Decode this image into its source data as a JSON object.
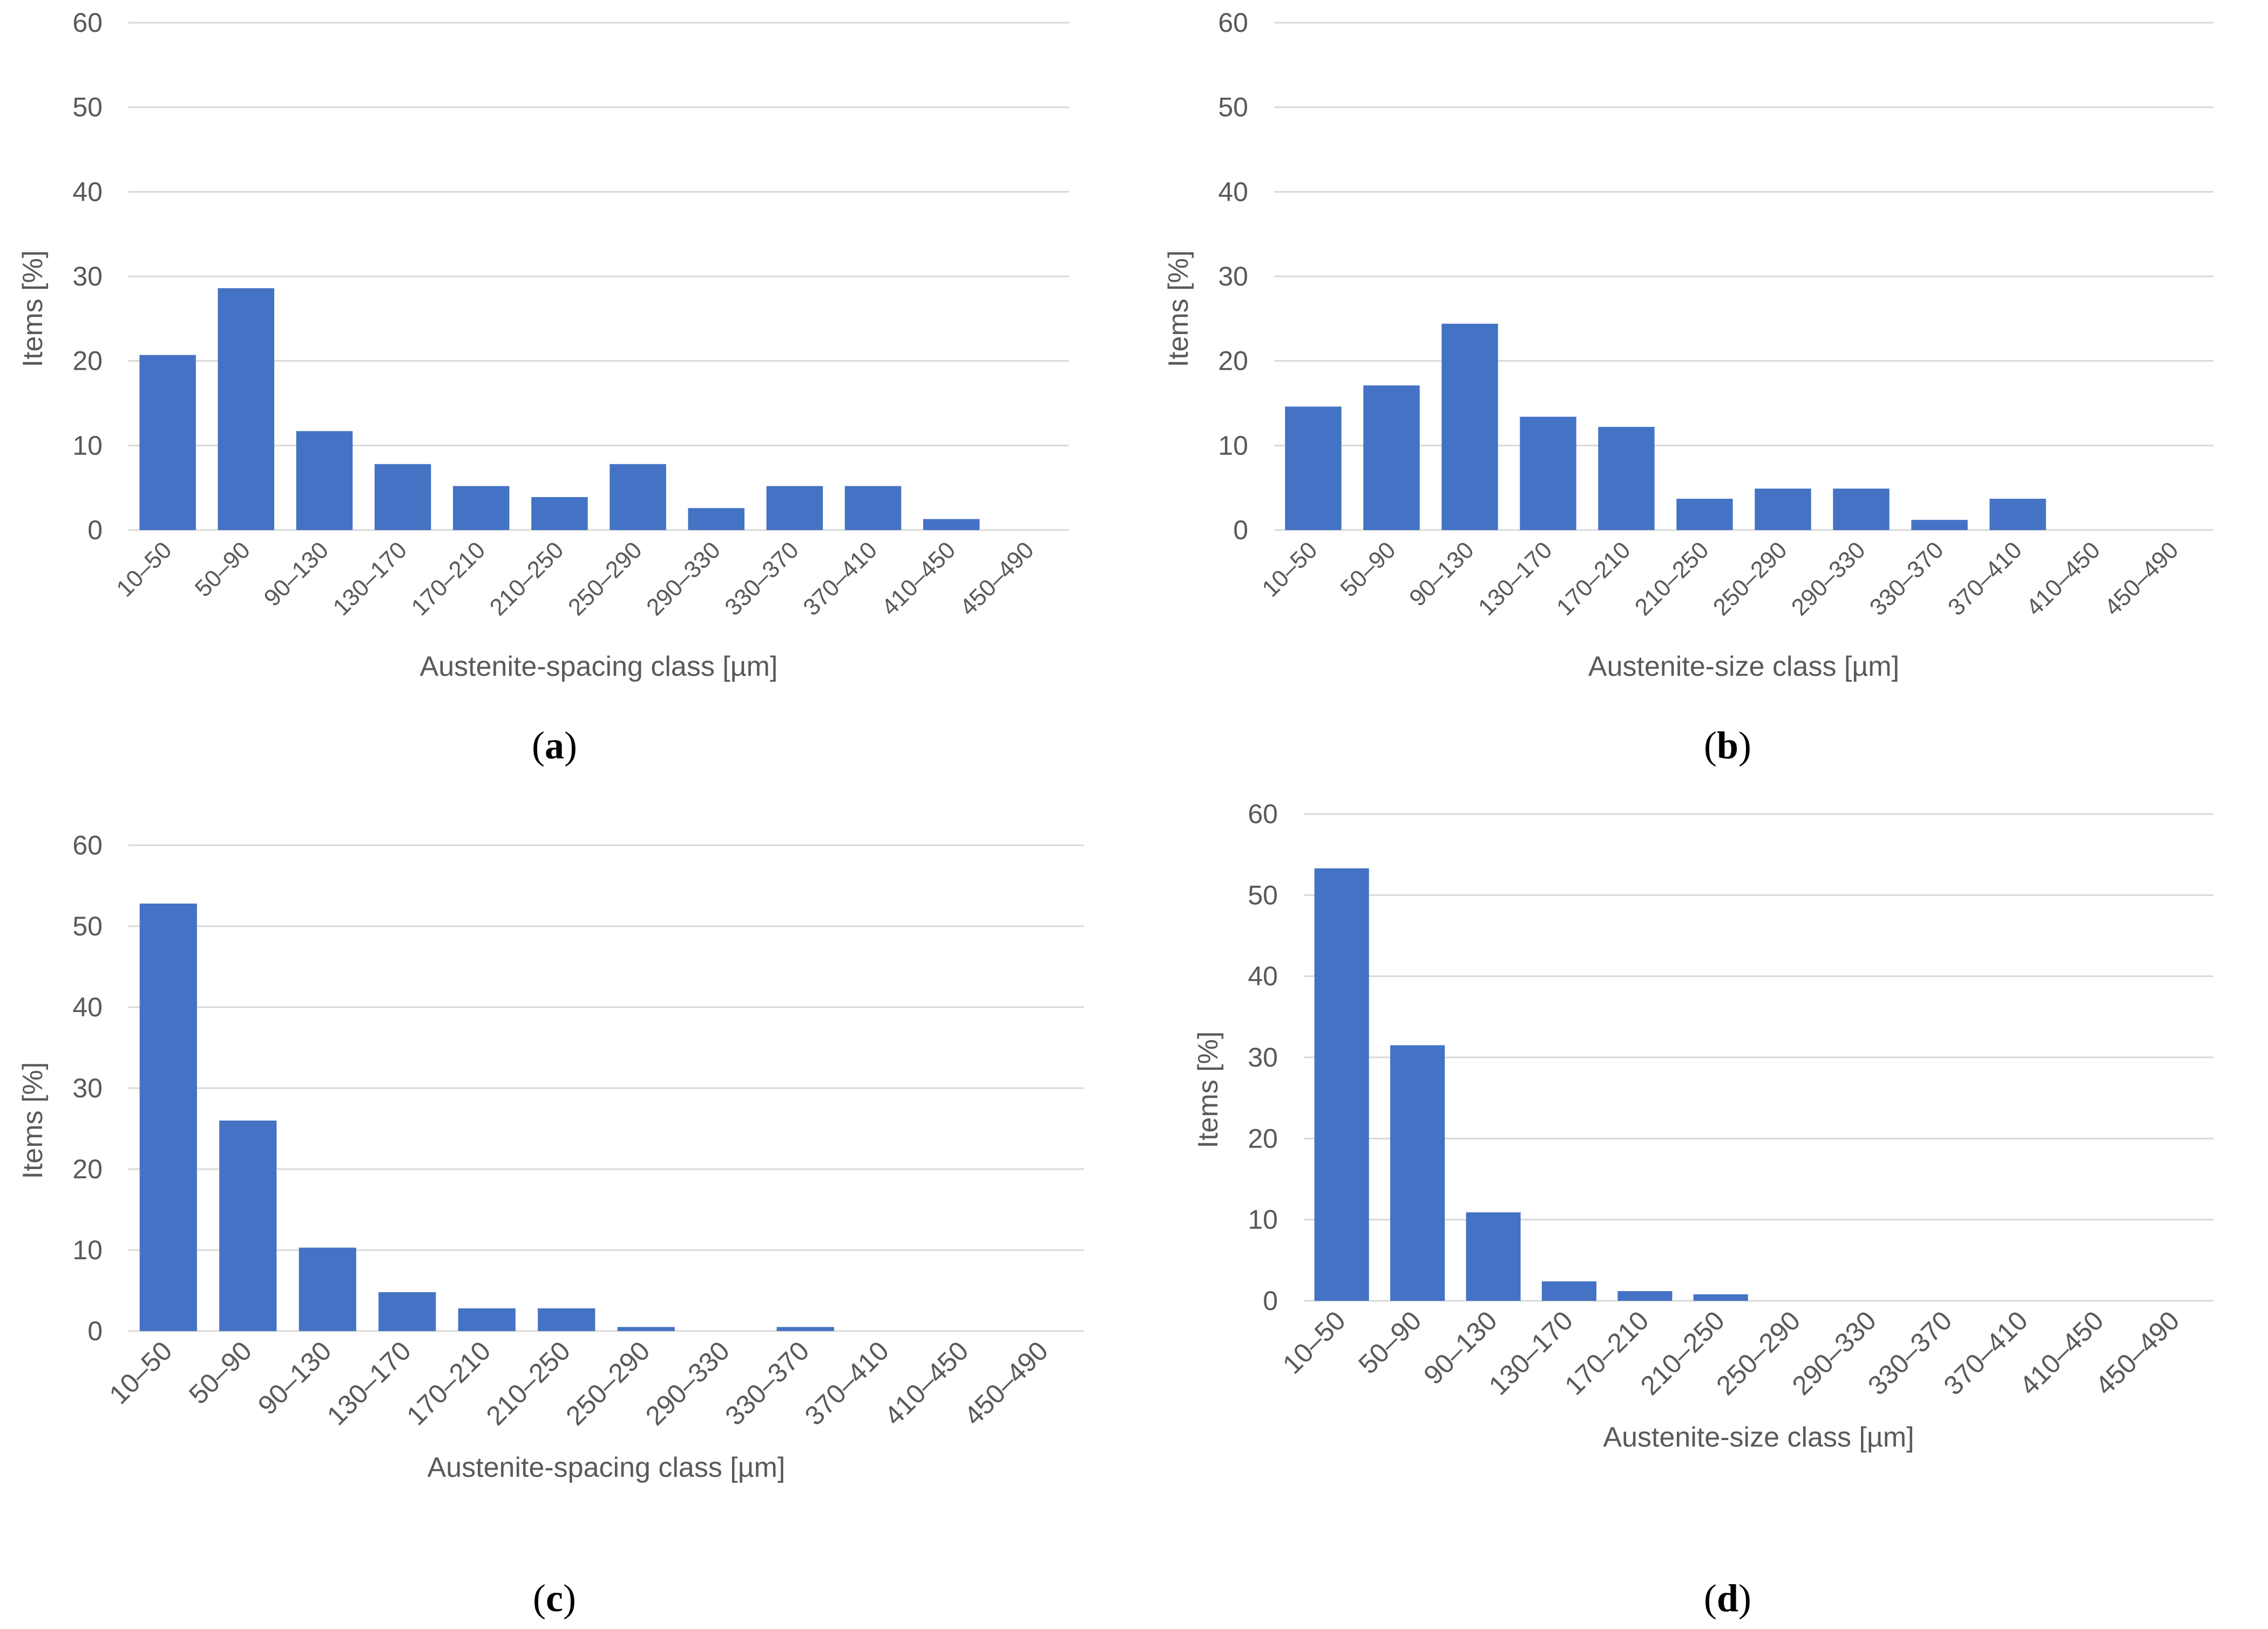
{
  "colors": {
    "bar": "#4472C4",
    "grid": "#D9D9D9",
    "text": "#595959"
  },
  "chart_data": [
    {
      "id": "a",
      "type": "bar",
      "caption": "a",
      "categories": [
        "10–50",
        "50–90",
        "90–130",
        "130–170",
        "170–210",
        "210–250",
        "250–290",
        "290–330",
        "330–370",
        "370–410",
        "410–450",
        "450–490"
      ],
      "values": [
        20.7,
        28.6,
        11.7,
        7.8,
        5.2,
        3.9,
        7.8,
        2.6,
        5.2,
        5.2,
        1.3,
        0
      ],
      "xlabel": "Austenite-spacing class [µm]",
      "ylabel": "Items [%]",
      "ylim": [
        0,
        60
      ],
      "yticks": [
        0,
        10,
        20,
        30,
        40,
        50,
        60
      ]
    },
    {
      "id": "b",
      "type": "bar",
      "caption": "b",
      "categories": [
        "10–50",
        "50–90",
        "90–130",
        "130–170",
        "170–210",
        "210–250",
        "250–290",
        "290–330",
        "330–370",
        "370–410",
        "410–450",
        "450–490"
      ],
      "values": [
        14.6,
        17.1,
        24.4,
        13.4,
        12.2,
        3.7,
        4.9,
        4.9,
        1.2,
        3.7,
        0,
        0
      ],
      "xlabel": "Austenite-size class [µm]",
      "ylabel": "Items [%]",
      "ylim": [
        0,
        60
      ],
      "yticks": [
        0,
        10,
        20,
        30,
        40,
        50,
        60
      ]
    },
    {
      "id": "c",
      "type": "bar",
      "caption": "c",
      "categories": [
        "10–50",
        "50–90",
        "90–130",
        "130–170",
        "170–210",
        "210–250",
        "250–290",
        "290–330",
        "330–370",
        "370–410",
        "410–450",
        "450–490"
      ],
      "values": [
        52.8,
        26.0,
        10.3,
        4.8,
        2.8,
        2.8,
        0.5,
        0,
        0.5,
        0,
        0,
        0
      ],
      "xlabel": "Austenite-spacing class [µm]",
      "ylabel": "Items [%]",
      "ylim": [
        0,
        60
      ],
      "yticks": [
        0,
        10,
        20,
        30,
        40,
        50,
        60
      ]
    },
    {
      "id": "d",
      "type": "bar",
      "caption": "d",
      "categories": [
        "10–50",
        "50–90",
        "90–130",
        "130–170",
        "170–210",
        "210–250",
        "250–290",
        "290–330",
        "330–370",
        "370–410",
        "410–450",
        "450–490"
      ],
      "values": [
        53.3,
        31.5,
        10.9,
        2.4,
        1.2,
        0.8,
        0,
        0,
        0,
        0,
        0,
        0
      ],
      "xlabel": "Austenite-size class [µm]",
      "ylabel": "Items [%]",
      "ylim": [
        0,
        60
      ],
      "yticks": [
        0,
        10,
        20,
        30,
        40,
        50,
        60
      ]
    }
  ]
}
